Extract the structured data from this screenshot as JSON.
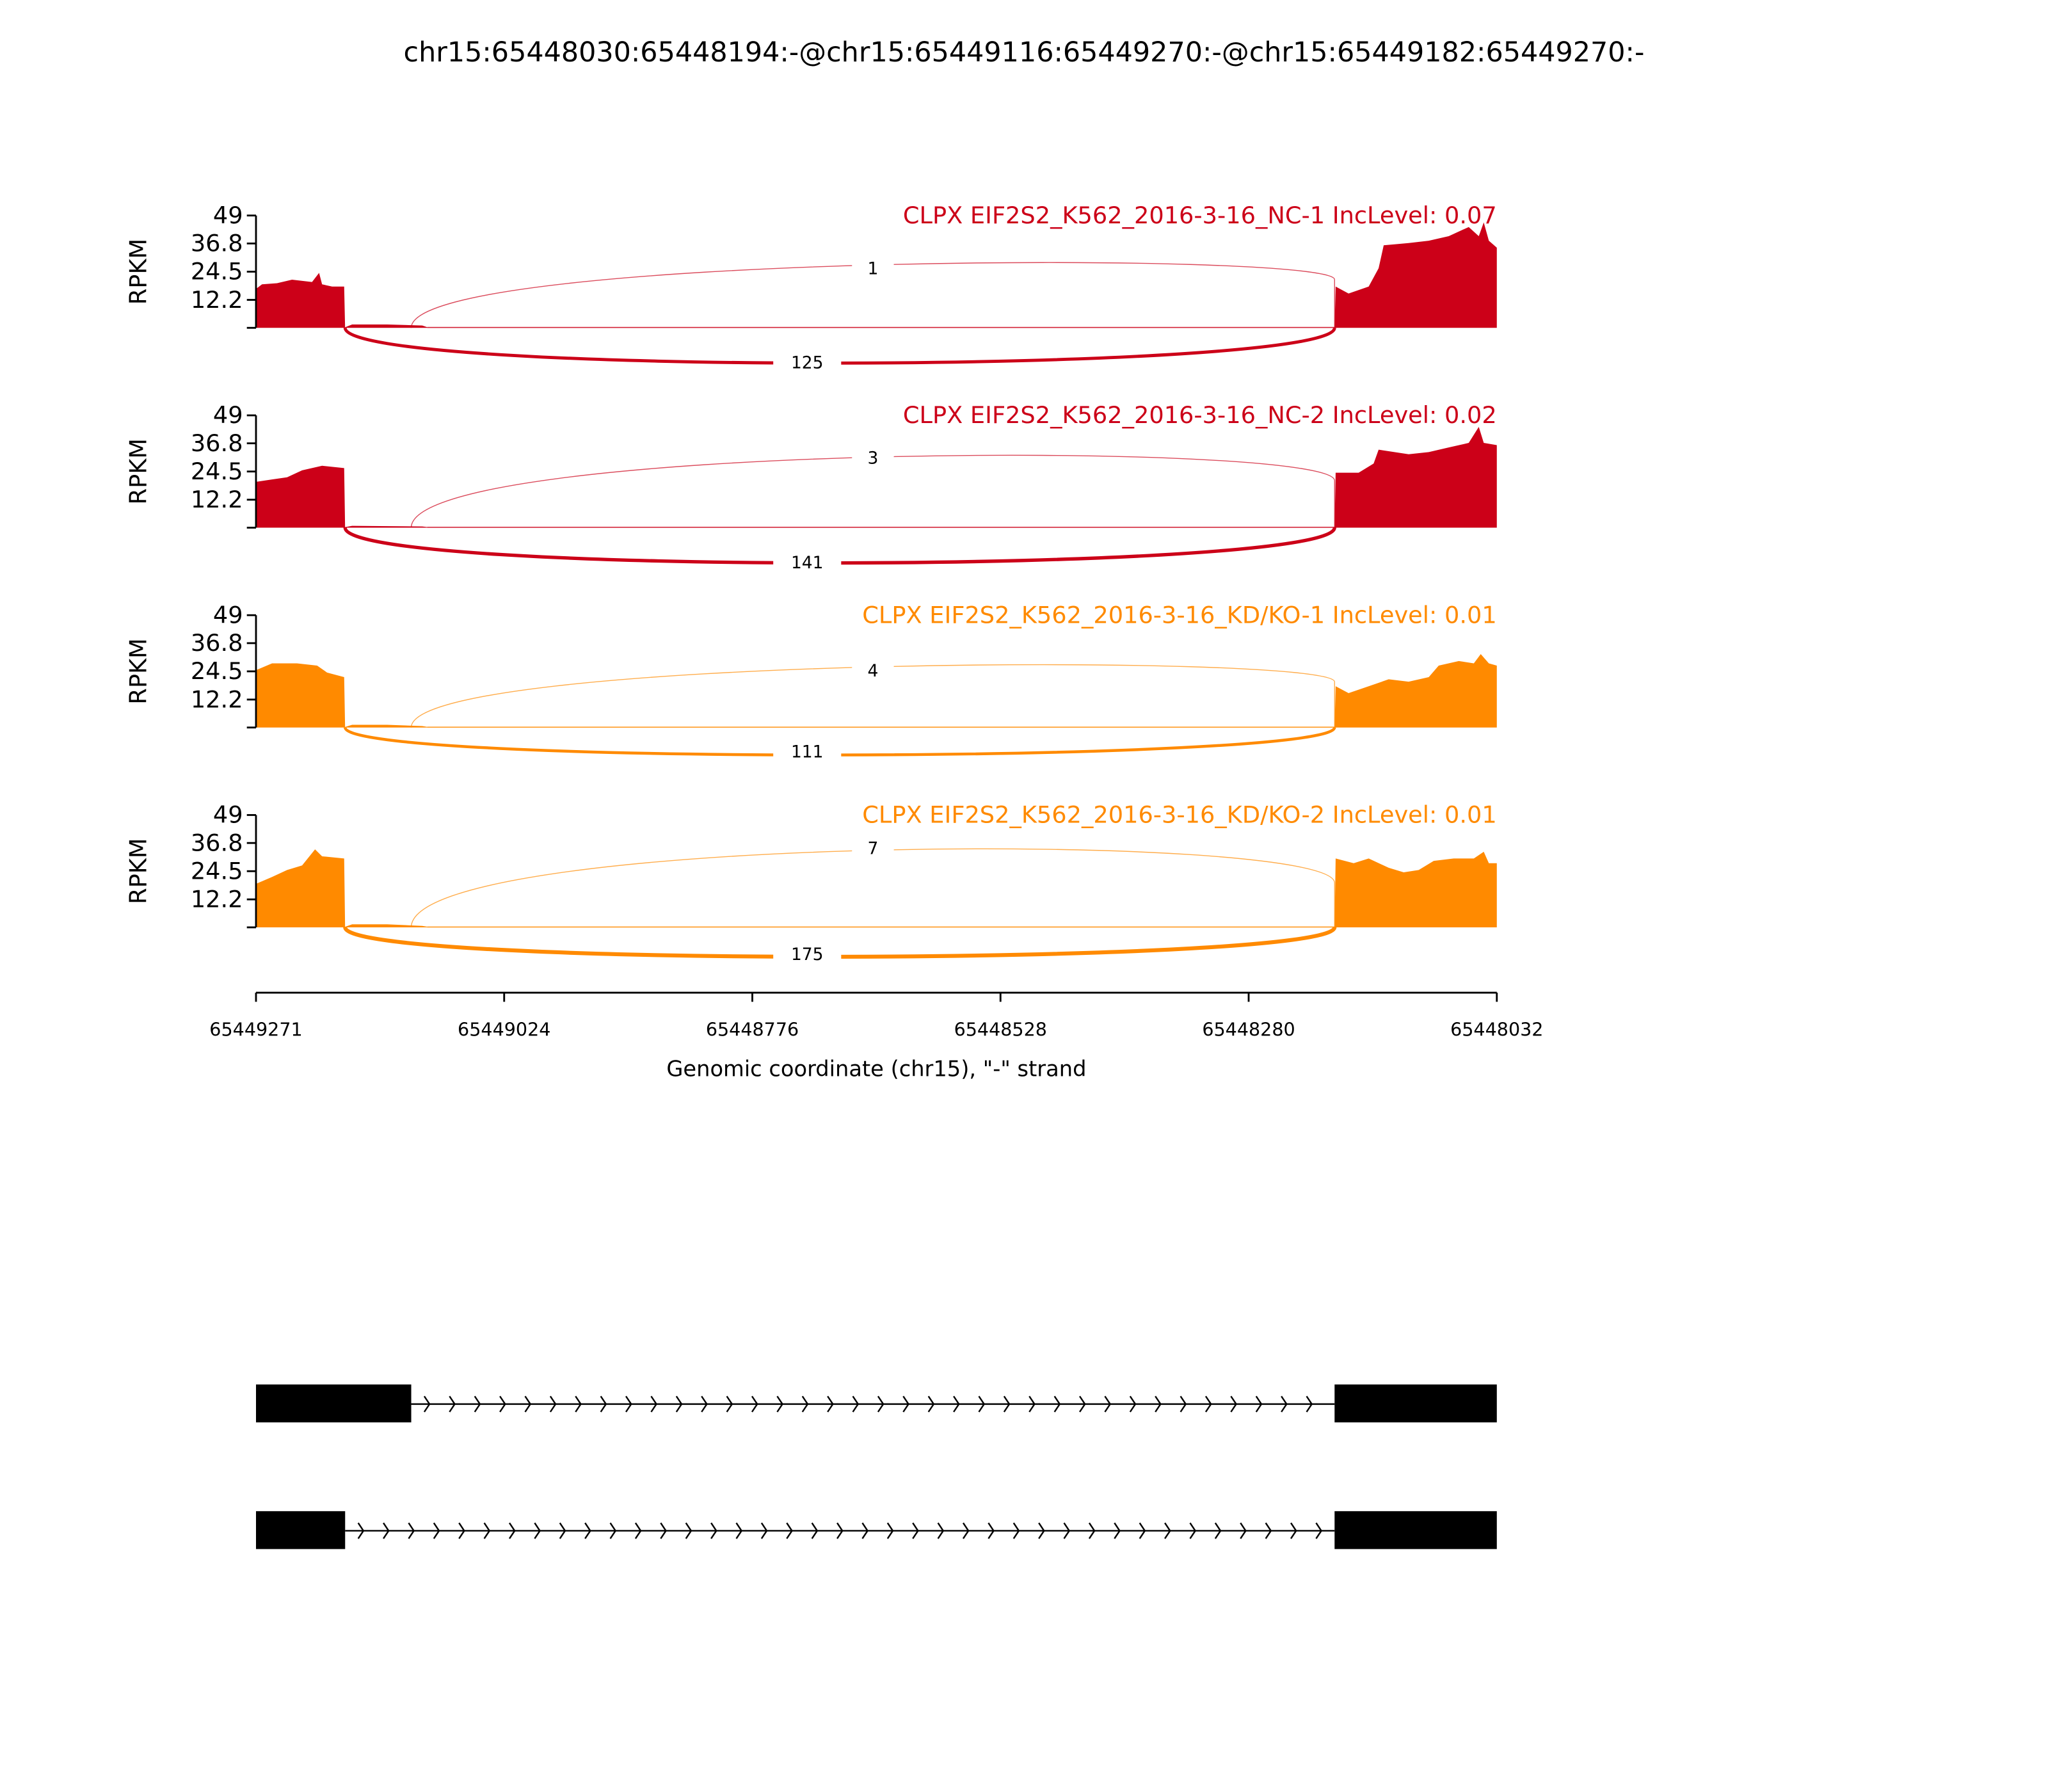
{
  "chart_data": {
    "type": "area",
    "title": "chr15:65448030:65448194:-@chr15:65449116:65449270:-@chr15:65449182:65449270:-",
    "xlabel": "Genomic coordinate (chr15), \"-\" strand",
    "ylabel": "RPKM",
    "xlim": [
      65449271,
      65448032
    ],
    "ylim": [
      0,
      49
    ],
    "x_ticks": [
      "65449271",
      "65449024",
      "65448776",
      "65448528",
      "65448280",
      "65448032"
    ],
    "y_ticks": [
      "12.2",
      "24.5",
      "36.8",
      "49"
    ],
    "panels": [
      {
        "name": "CLPX EIF2S2_K562_2016-3-16_NC-1 IncLevel: 0.07",
        "color": "#cc0018",
        "junctions": [
          {
            "from": 65449116,
            "to": 65448194,
            "count": "1",
            "side": "top"
          },
          {
            "from": 65449182,
            "to": 65448194,
            "count": "125",
            "side": "bottom"
          }
        ],
        "coverage": [
          [
            65449271,
            17
          ],
          [
            65449265,
            19
          ],
          [
            65449250,
            19.5
          ],
          [
            65449235,
            21
          ],
          [
            65449215,
            20
          ],
          [
            65449208,
            24
          ],
          [
            65449205,
            19
          ],
          [
            65449195,
            18
          ],
          [
            65449183,
            18
          ],
          [
            65449182,
            0.2
          ],
          [
            65449175,
            1.5
          ],
          [
            65449140,
            1.5
          ],
          [
            65449105,
            1
          ],
          [
            65449100,
            0.3
          ],
          [
            65448194,
            0.3
          ],
          [
            65448193,
            18
          ],
          [
            65448180,
            15
          ],
          [
            65448160,
            18
          ],
          [
            65448150,
            26
          ],
          [
            65448145,
            36
          ],
          [
            65448120,
            37
          ],
          [
            65448100,
            38
          ],
          [
            65448080,
            40
          ],
          [
            65448060,
            44
          ],
          [
            65448050,
            40
          ],
          [
            65448045,
            46
          ],
          [
            65448040,
            38
          ],
          [
            65448032,
            35
          ]
        ]
      },
      {
        "name": "CLPX EIF2S2_K562_2016-3-16_NC-2 IncLevel: 0.02",
        "color": "#cc0018",
        "junctions": [
          {
            "from": 65449116,
            "to": 65448194,
            "count": "3",
            "side": "top"
          },
          {
            "from": 65449182,
            "to": 65448194,
            "count": "141",
            "side": "bottom"
          }
        ],
        "coverage": [
          [
            65449271,
            20
          ],
          [
            65449255,
            21
          ],
          [
            65449240,
            22
          ],
          [
            65449225,
            25
          ],
          [
            65449205,
            27
          ],
          [
            65449183,
            26
          ],
          [
            65449182,
            0.2
          ],
          [
            65449175,
            0.8
          ],
          [
            65449105,
            0.5
          ],
          [
            65449100,
            0.3
          ],
          [
            65448194,
            0.3
          ],
          [
            65448193,
            24
          ],
          [
            65448170,
            24
          ],
          [
            65448155,
            28
          ],
          [
            65448150,
            34
          ],
          [
            65448120,
            32
          ],
          [
            65448100,
            33
          ],
          [
            65448080,
            35
          ],
          [
            65448060,
            37
          ],
          [
            65448050,
            44
          ],
          [
            65448045,
            37
          ],
          [
            65448032,
            36
          ]
        ]
      },
      {
        "name": "CLPX EIF2S2_K562_2016-3-16_KD/KO-1 IncLevel: 0.01",
        "color": "#ff8a00",
        "junctions": [
          {
            "from": 65449116,
            "to": 65448194,
            "count": "4",
            "side": "top"
          },
          {
            "from": 65449182,
            "to": 65448194,
            "count": "111",
            "side": "bottom"
          }
        ],
        "coverage": [
          [
            65449271,
            25
          ],
          [
            65449255,
            28
          ],
          [
            65449230,
            28
          ],
          [
            65449210,
            27
          ],
          [
            65449200,
            24
          ],
          [
            65449183,
            22
          ],
          [
            65449182,
            0.2
          ],
          [
            65449175,
            1.2
          ],
          [
            65449140,
            1.2
          ],
          [
            65449105,
            0.6
          ],
          [
            65449100,
            0.3
          ],
          [
            65448194,
            0.3
          ],
          [
            65448193,
            18
          ],
          [
            65448180,
            15
          ],
          [
            65448160,
            18
          ],
          [
            65448140,
            21
          ],
          [
            65448120,
            20
          ],
          [
            65448100,
            22
          ],
          [
            65448090,
            27
          ],
          [
            65448070,
            29
          ],
          [
            65448055,
            28
          ],
          [
            65448048,
            32
          ],
          [
            65448040,
            28
          ],
          [
            65448032,
            27
          ]
        ]
      },
      {
        "name": "CLPX EIF2S2_K562_2016-3-16_KD/KO-2 IncLevel: 0.01",
        "color": "#ff8a00",
        "junctions": [
          {
            "from": 65449116,
            "to": 65448194,
            "count": "7",
            "side": "top"
          },
          {
            "from": 65449182,
            "to": 65448194,
            "count": "175",
            "side": "bottom"
          }
        ],
        "coverage": [
          [
            65449271,
            19
          ],
          [
            65449255,
            22
          ],
          [
            65449240,
            25
          ],
          [
            65449225,
            27
          ],
          [
            65449212,
            34
          ],
          [
            65449205,
            31
          ],
          [
            65449183,
            30
          ],
          [
            65449182,
            0.2
          ],
          [
            65449175,
            1.3
          ],
          [
            65449140,
            1.3
          ],
          [
            65449105,
            0.6
          ],
          [
            65449100,
            0.3
          ],
          [
            65448194,
            0.3
          ],
          [
            65448193,
            30
          ],
          [
            65448175,
            28
          ],
          [
            65448160,
            30
          ],
          [
            65448140,
            26
          ],
          [
            65448125,
            24
          ],
          [
            65448110,
            25
          ],
          [
            65448095,
            29
          ],
          [
            65448075,
            30
          ],
          [
            65448055,
            30
          ],
          [
            65448045,
            33
          ],
          [
            65448040,
            28
          ],
          [
            65448032,
            28
          ]
        ]
      }
    ],
    "transcripts": [
      {
        "exons": [
          [
            65449271,
            65449116
          ],
          [
            65448194,
            65448032
          ]
        ]
      },
      {
        "exons": [
          [
            65449271,
            65449182
          ],
          [
            65448194,
            65448032
          ]
        ]
      }
    ]
  }
}
